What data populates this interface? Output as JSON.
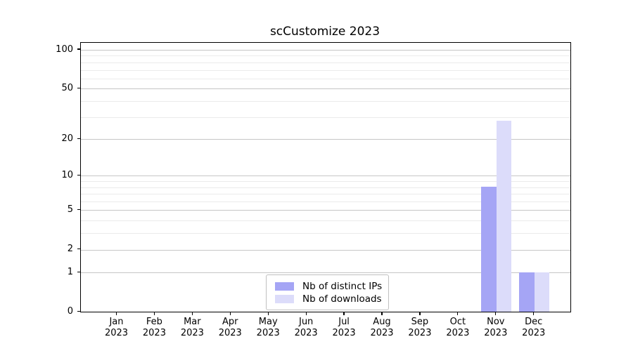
{
  "chart_data": {
    "type": "bar",
    "title": "scCustomize 2023",
    "categories": [
      "Jan",
      "Feb",
      "Mar",
      "Apr",
      "May",
      "Jun",
      "Jul",
      "Aug",
      "Sep",
      "Oct",
      "Nov",
      "Dec"
    ],
    "category_year": "2023",
    "series": [
      {
        "name": "Nb of distinct IPs",
        "color": "#a5a5f5",
        "values": [
          0,
          0,
          0,
          0,
          0,
          0,
          0,
          0,
          0,
          0,
          8,
          1
        ]
      },
      {
        "name": "Nb of downloads",
        "color": "#dcdcfa",
        "values": [
          0,
          0,
          0,
          0,
          0,
          0,
          0,
          0,
          0,
          0,
          28,
          1
        ]
      }
    ],
    "yscale": "log1p",
    "ylim": [
      0,
      113
    ],
    "yticks": [
      0,
      1,
      2,
      5,
      10,
      20,
      50,
      100
    ],
    "yticks_minor": [
      3,
      4,
      6,
      7,
      8,
      9,
      30,
      40,
      60,
      70,
      80,
      90
    ],
    "xlabel": "",
    "ylabel": "",
    "grid": "horizontal",
    "legend_position": "lower center",
    "colors": {
      "grid_major": "#c6c6c6",
      "grid_minor": "#ebebeb",
      "axis": "#000000",
      "background": "#ffffff"
    }
  }
}
